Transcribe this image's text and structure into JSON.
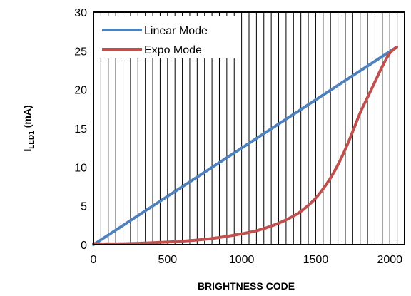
{
  "chart_data": {
    "type": "line",
    "xlabel": "BRIGHTNESS  CODE",
    "ylabel_main": "I",
    "ylabel_sub": "LED1",
    "ylabel_unit": " (mA)",
    "xlim": [
      0,
      2100
    ],
    "ylim": [
      0,
      30
    ],
    "xticks": [
      0,
      500,
      1000,
      1500,
      2000
    ],
    "yticks": [
      0,
      5,
      10,
      15,
      20,
      25,
      30
    ],
    "x_gridlines": [
      50,
      100,
      150,
      200,
      250,
      300,
      350,
      400,
      450,
      500,
      550,
      600,
      650,
      700,
      750,
      800,
      850,
      900,
      950,
      1000,
      1050,
      1100,
      1150,
      1200,
      1250,
      1300,
      1350,
      1400,
      1450,
      1500,
      1550,
      1600,
      1650,
      1700,
      1750,
      1800,
      1850,
      1900,
      1950,
      2000,
      2050
    ],
    "grid": "vertical",
    "legend_position": "top-left",
    "series": [
      {
        "name": "Linear Mode",
        "color": "#4F81BD",
        "x": [
          0,
          2047
        ],
        "y": [
          0,
          25.5
        ]
      },
      {
        "name": "Expo Mode",
        "color": "#C0504D",
        "x": [
          0,
          200,
          400,
          600,
          800,
          1000,
          1100,
          1200,
          1300,
          1400,
          1500,
          1550,
          1600,
          1650,
          1700,
          1750,
          1800,
          1850,
          1900,
          1950,
          2000,
          2047
        ],
        "y": [
          0.1,
          0.12,
          0.25,
          0.45,
          0.8,
          1.4,
          1.8,
          2.4,
          3.2,
          4.3,
          6.0,
          7.2,
          8.6,
          10.3,
          12.3,
          14.6,
          17.0,
          19.0,
          21.0,
          23.0,
          24.7,
          25.5
        ]
      }
    ]
  }
}
